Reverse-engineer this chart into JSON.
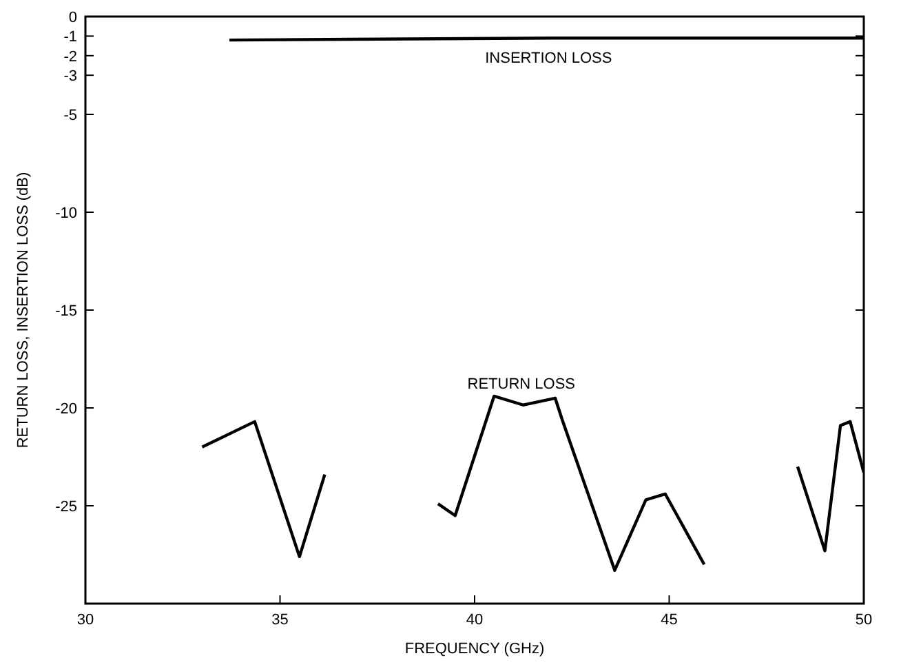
{
  "chart_data": {
    "type": "line",
    "xlabel": "FREQUENCY (GHz)",
    "ylabel": "RETURN LOSS, INSERTION LOSS (dB)",
    "xlim": [
      30,
      50
    ],
    "xticks": [
      30,
      35,
      40,
      45,
      50
    ],
    "ylim": [
      -30,
      0
    ],
    "yticks": [
      0,
      -1,
      -2,
      -3,
      -5,
      -10,
      -15,
      -20,
      -25
    ],
    "grid": false,
    "line_style": "solid",
    "marker": "none",
    "series": [
      {
        "color": "#000000",
        "x": [
          33.7,
          42,
          50
        ],
        "values": [
          -1.2,
          -1.1,
          -1.1
        ]
      },
      {
        "color": "#000000",
        "x": [
          33,
          34.35,
          35.5,
          36.15,
          37,
          38.5,
          39.06,
          39.5,
          40.5,
          41.25,
          42.07,
          42.25,
          43.6,
          44.4,
          44.9,
          45.9,
          46.8,
          47.6,
          48.3,
          49,
          49.4,
          49.65,
          50
        ],
        "values": [
          -22,
          -20.7,
          -27.6,
          -23.4,
          null,
          null,
          -24.9,
          -25.5,
          -19.4,
          -19.85,
          -19.5,
          -20.6,
          -28.3,
          -24.7,
          -24.4,
          -28,
          null,
          null,
          -23,
          -27.3,
          -20.9,
          -20.7,
          -23.3
        ]
      }
    ],
    "annotations": [
      {
        "text": "INSERTION LOSS",
        "x": 41.9,
        "y": -1.1
      },
      {
        "text": "RETURN LOSS",
        "x": 41.2,
        "y": -19.85
      }
    ]
  }
}
